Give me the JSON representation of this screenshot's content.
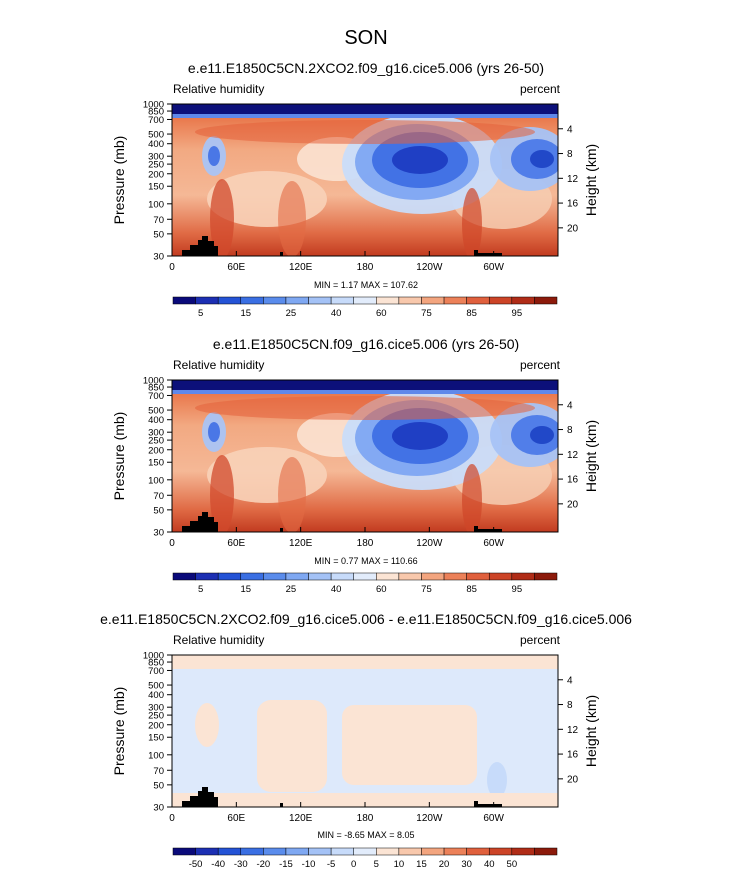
{
  "figure": {
    "season": "SON"
  },
  "colorbar_colors_main": [
    "#0a0a7a",
    "#1c2fb3",
    "#2453d6",
    "#3a6fe3",
    "#5a8cec",
    "#7fa8f2",
    "#a4c2f6",
    "#c7dbfa",
    "#e2ecfb",
    "#fbe4d4",
    "#f8c8ac",
    "#f3a57f",
    "#ec8159",
    "#e0603d",
    "#cc4427",
    "#b02c17",
    "#8c1a0b"
  ],
  "colorbar_colors_diff": [
    "#0a0a7a",
    "#1c2fb3",
    "#2453d6",
    "#3a6fe3",
    "#5a8cec",
    "#7fa8f2",
    "#a4c2f6",
    "#c7dbfa",
    "#e2ecfb",
    "#fbe4d4",
    "#f8c8ac",
    "#f3a57f",
    "#ec8159",
    "#e0603d",
    "#cc4427",
    "#b02c17",
    "#8c1a0b"
  ],
  "panels": [
    {
      "title": "e.e11.E1850C5CN.2XCO2.f09_g16.cice5.006 (yrs 26-50)",
      "left_label": "Relative humidity",
      "right_label": "percent",
      "stats": "MIN =   1.17  MAX = 107.62",
      "colorbar_labels": [
        "5",
        "15",
        "25",
        "40",
        "60",
        "75",
        "85",
        "95"
      ]
    },
    {
      "title": "e.e11.E1850C5CN.f09_g16.cice5.006 (yrs 26-50)",
      "left_label": "Relative humidity",
      "right_label": "percent",
      "stats": "MIN =   0.77  MAX = 110.66",
      "colorbar_labels": [
        "5",
        "15",
        "25",
        "40",
        "60",
        "75",
        "85",
        "95"
      ]
    },
    {
      "title": "e.e11.E1850C5CN.2XCO2.f09_g16.cice5.006 - e.e11.E1850C5CN.f09_g16.cice5.006",
      "left_label": "Relative humidity",
      "right_label": "percent",
      "stats": "MIN =  -8.65  MAX =   8.05",
      "colorbar_labels": [
        "-50",
        "-40",
        "-30",
        "-20",
        "-15",
        "-10",
        "-5",
        "0",
        "5",
        "10",
        "15",
        "20",
        "30",
        "40",
        "50"
      ]
    }
  ],
  "chart_data": [
    {
      "type": "heatmap",
      "title": "e.e11.E1850C5CN.2XCO2.f09_g16.cice5.006 (yrs 26-50)",
      "variable": "Relative humidity",
      "units": "percent",
      "xlabel": "",
      "ylabel": "Pressure (mb)",
      "y2label": "Height (km)",
      "x_ticks": [
        "0",
        "60E",
        "120E",
        "180",
        "120W",
        "60W"
      ],
      "y_ticks": [
        "30",
        "50",
        "70",
        "100",
        "150",
        "200",
        "250",
        "300",
        "400",
        "500",
        "700",
        "850",
        "1000"
      ],
      "y2_ticks": [
        "20",
        "16",
        "12",
        "8",
        "4"
      ],
      "min": 1.17,
      "max": 107.62,
      "contour_levels": [
        5,
        10,
        15,
        20,
        25,
        30,
        40,
        50,
        60,
        70,
        75,
        80,
        85,
        90,
        95
      ]
    },
    {
      "type": "heatmap",
      "title": "e.e11.E1850C5CN.f09_g16.cice5.006 (yrs 26-50)",
      "variable": "Relative humidity",
      "units": "percent",
      "xlabel": "",
      "ylabel": "Pressure (mb)",
      "y2label": "Height (km)",
      "x_ticks": [
        "0",
        "60E",
        "120E",
        "180",
        "120W",
        "60W"
      ],
      "y_ticks": [
        "30",
        "50",
        "70",
        "100",
        "150",
        "200",
        "250",
        "300",
        "400",
        "500",
        "700",
        "850",
        "1000"
      ],
      "y2_ticks": [
        "20",
        "16",
        "12",
        "8",
        "4"
      ],
      "min": 0.77,
      "max": 110.66,
      "contour_levels": [
        5,
        10,
        15,
        20,
        25,
        30,
        40,
        50,
        60,
        70,
        75,
        80,
        85,
        90,
        95
      ]
    },
    {
      "type": "heatmap",
      "title": "e.e11.E1850C5CN.2XCO2.f09_g16.cice5.006 - e.e11.E1850C5CN.f09_g16.cice5.006",
      "variable": "Relative humidity",
      "units": "percent",
      "xlabel": "",
      "ylabel": "Pressure (mb)",
      "y2label": "Height (km)",
      "x_ticks": [
        "0",
        "60E",
        "120E",
        "180",
        "120W",
        "60W"
      ],
      "y_ticks": [
        "30",
        "50",
        "70",
        "100",
        "150",
        "200",
        "250",
        "300",
        "400",
        "500",
        "700",
        "850",
        "1000"
      ],
      "y2_ticks": [
        "20",
        "16",
        "12",
        "8",
        "4"
      ],
      "min": -8.65,
      "max": 8.05,
      "contour_levels": [
        -50,
        -40,
        -30,
        -20,
        -15,
        -10,
        -5,
        0,
        5,
        10,
        15,
        20,
        30,
        40,
        50
      ]
    }
  ]
}
